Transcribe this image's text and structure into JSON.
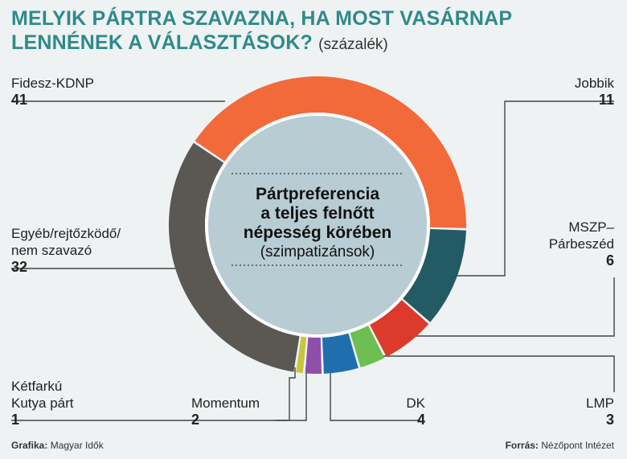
{
  "title": {
    "main_line1": "MELYIK PÁRTRA SZAVAZNA, HA MOST VASÁRNAP",
    "main_line2": "LENNÉNEK A VÁLASZTÁSOK?",
    "unit": "(százalék)"
  },
  "center": {
    "line1": "Pártpreferencia",
    "line2": "a teljes felnőtt",
    "line3": "népesség körében",
    "line4": "(szimpatizánsok)"
  },
  "chart_data": {
    "type": "pie",
    "donut": true,
    "categories": [
      "Fidesz-KDNP",
      "Jobbik",
      "MSZP-Párbeszéd",
      "LMP",
      "DK",
      "Momentum",
      "Kétfarkú Kutya párt",
      "Egyéb/rejtőzködő/nem szavazó"
    ],
    "values": [
      41,
      11,
      6,
      3,
      4,
      2,
      1,
      32
    ],
    "colors": [
      "#f26a3a",
      "#225b63",
      "#dc3a2c",
      "#6cbf50",
      "#1f6fae",
      "#8e4fa8",
      "#c9c63a",
      "#5b5753"
    ]
  },
  "labels": {
    "fidesz": {
      "name": "Fidesz-KDNP",
      "value": "41"
    },
    "jobbik": {
      "name": "Jobbik",
      "value": "11"
    },
    "mszp": {
      "name1": "MSZP–",
      "name2": "Párbeszéd",
      "value": "6"
    },
    "lmp": {
      "name": "LMP",
      "value": "3"
    },
    "dk": {
      "name": "DK",
      "value": "4"
    },
    "momentum": {
      "name": "Momentum",
      "value": "2"
    },
    "mkkp": {
      "name1": "Kétfarkú",
      "name2": "Kutya párt",
      "value": "1"
    },
    "egyeb": {
      "name1": "Egyéb/rejtőzködő/",
      "name2": "nem szavazó",
      "value": "32"
    }
  },
  "footer": {
    "left_label": "Grafika:",
    "left_value": "Magyar Idők",
    "right_label": "Forrás:",
    "right_value": "Nézőpont Intézet"
  }
}
